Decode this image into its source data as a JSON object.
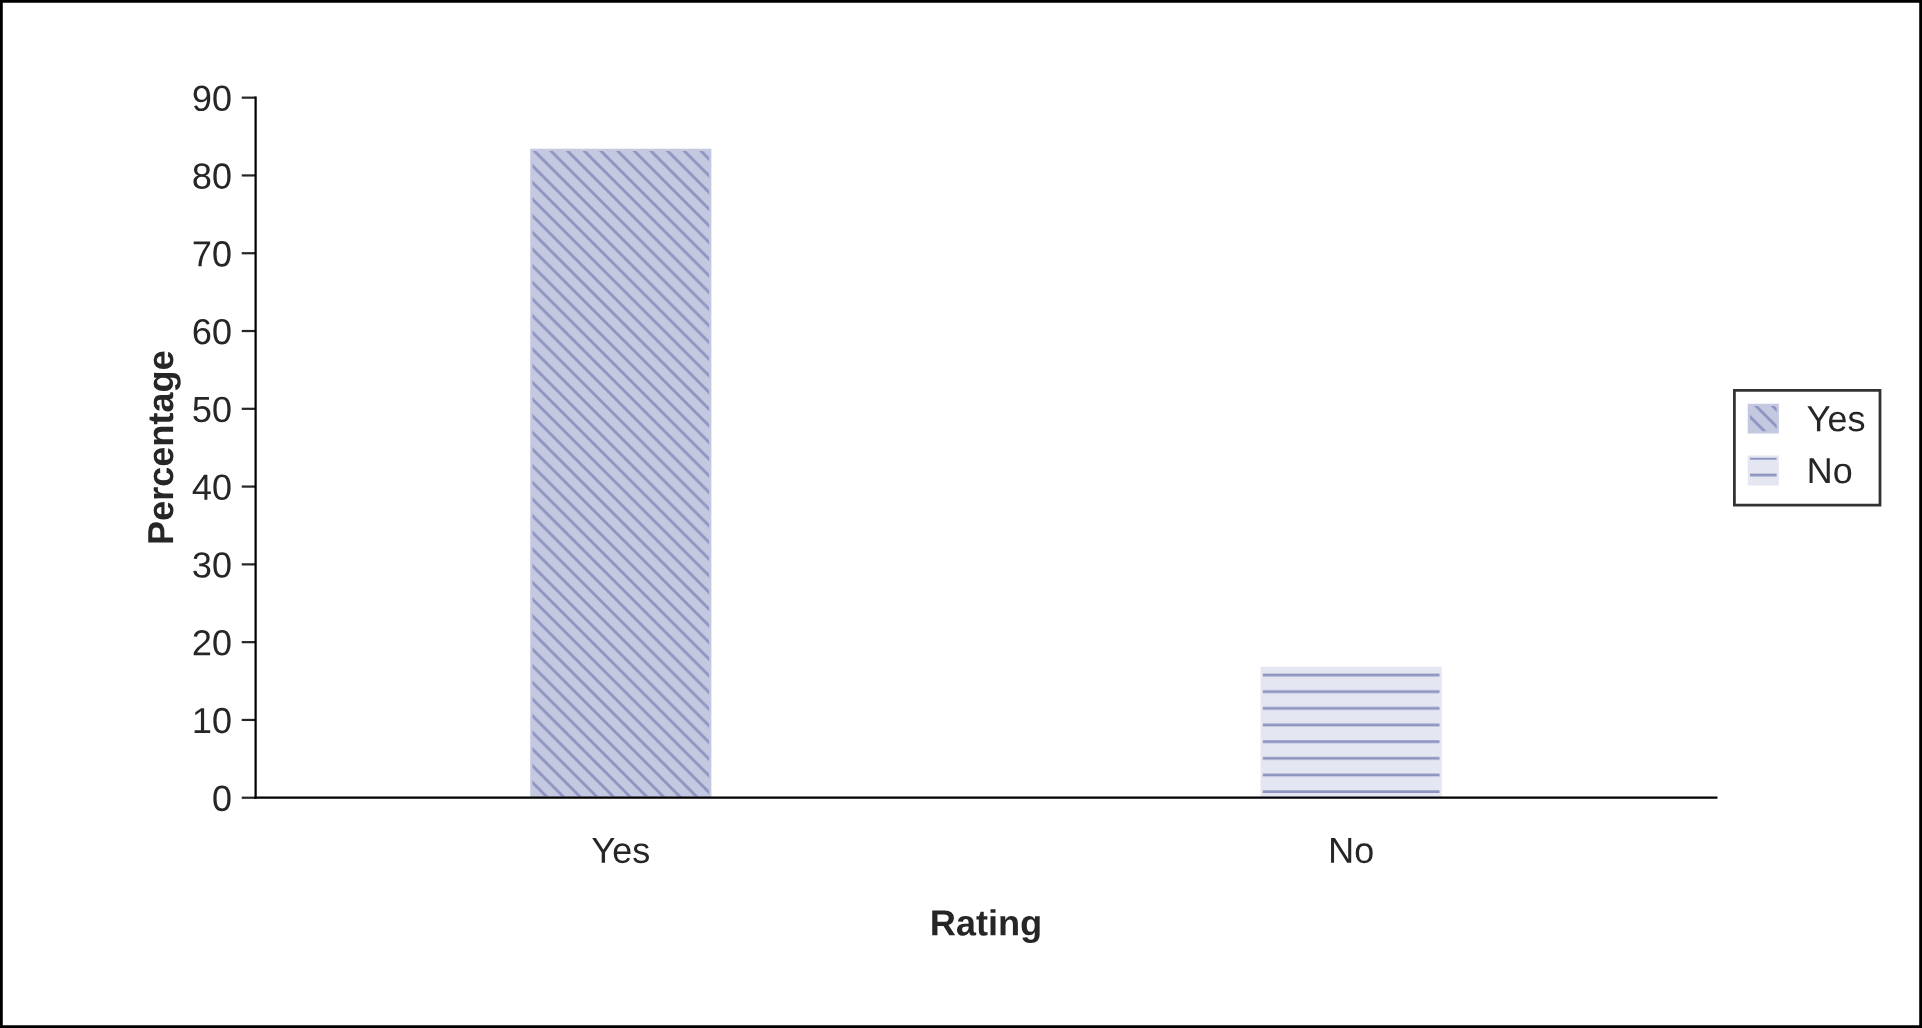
{
  "chart_data": {
    "type": "bar",
    "xlabel": "Rating",
    "ylabel": "Percentage",
    "categories": [
      "Yes",
      "No"
    ],
    "series": [
      {
        "name": "Yes",
        "color": "#c4c8e0",
        "values": [
          83.3,
          null
        ]
      },
      {
        "name": "No",
        "color": "#e4e6f2",
        "values": [
          null,
          16.7
        ]
      }
    ],
    "ylim": [
      0,
      90
    ],
    "yticks": [
      0,
      10,
      20,
      30,
      40,
      50,
      60,
      70,
      80,
      90
    ],
    "grid": false,
    "legend": "right"
  }
}
